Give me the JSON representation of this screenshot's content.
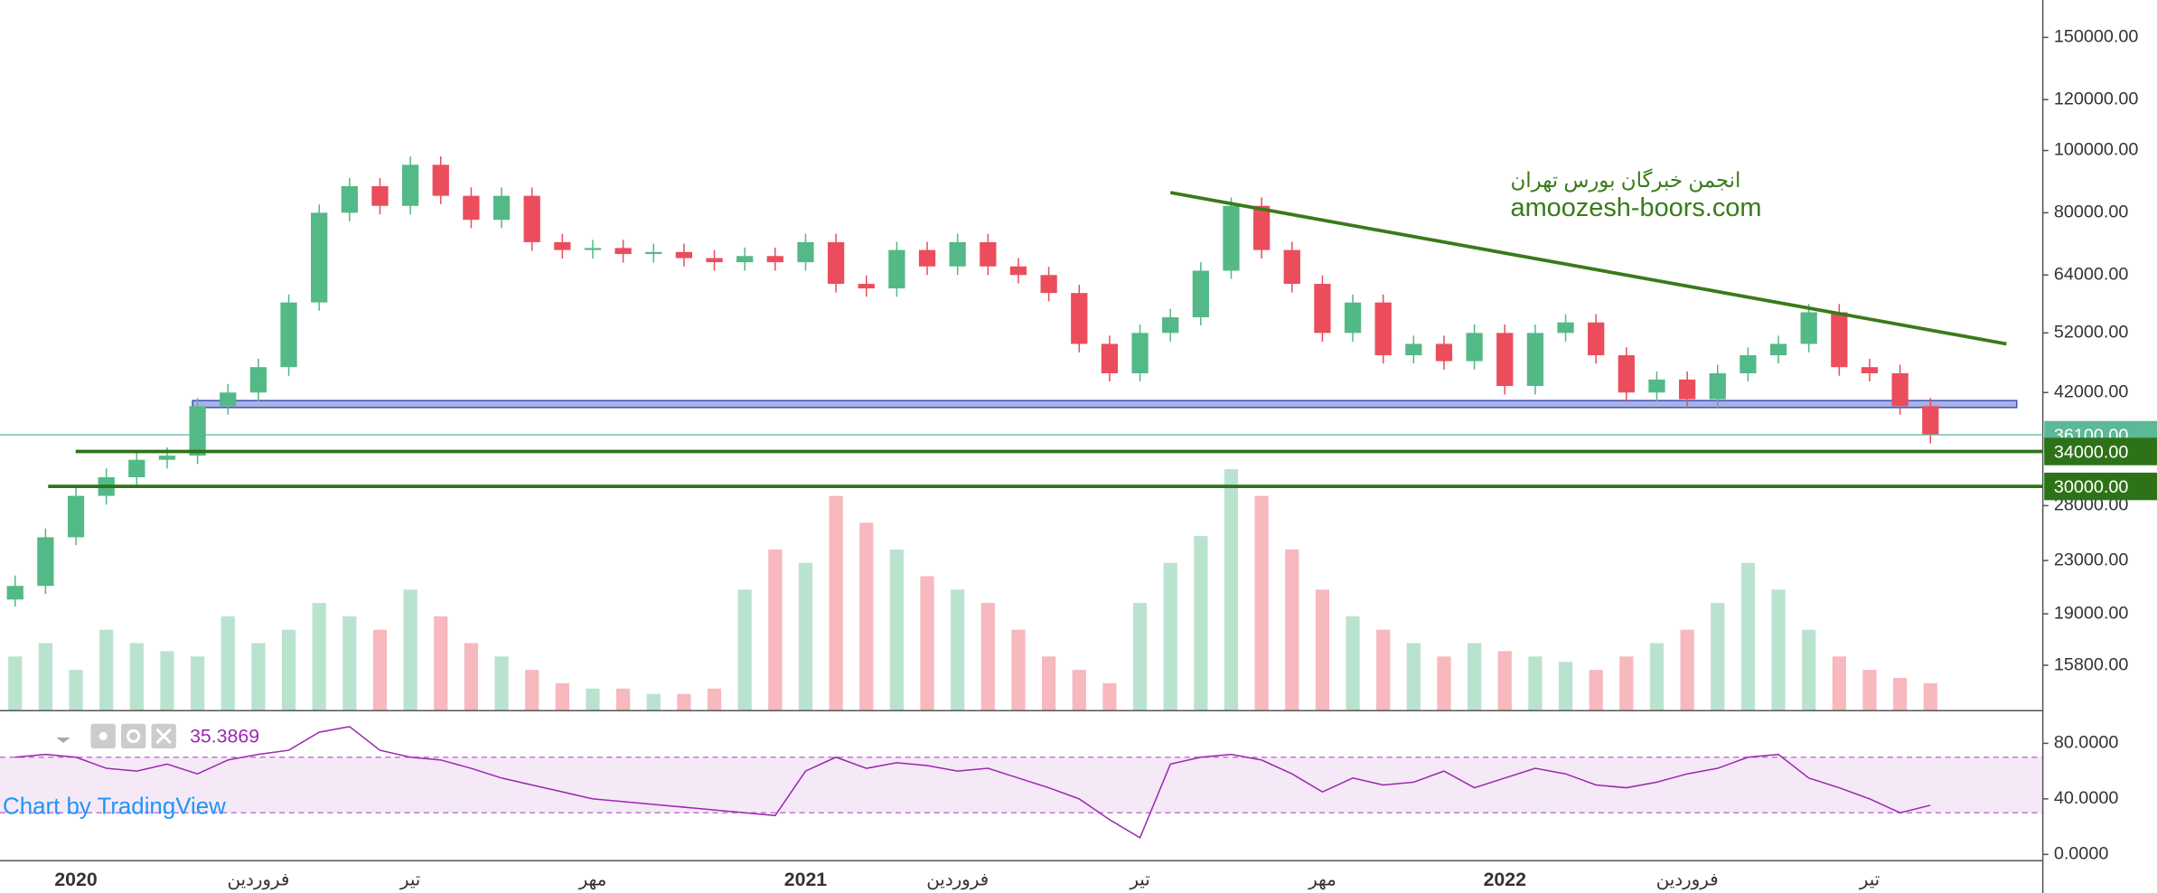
{
  "chart_data": {
    "type": "candlestick",
    "watermark_title": "انجمن خبرگان بورس تهران",
    "watermark_url": "amoozesh-boors.com",
    "credit": "Chart by TradingView",
    "categories": [
      null,
      null,
      "2020",
      null,
      null,
      null,
      null,
      null,
      "فروردین",
      null,
      null,
      null,
      null,
      "تیر",
      null,
      null,
      null,
      null,
      null,
      "مهر",
      null,
      null,
      null,
      null,
      null,
      null,
      "2021",
      null,
      null,
      null,
      null,
      "فروردین",
      null,
      null,
      null,
      null,
      null,
      "تیر",
      null,
      null,
      null,
      null,
      null,
      "مهر",
      null,
      null,
      null,
      null,
      null,
      "2022",
      null,
      null,
      null,
      null,
      null,
      "فروردین",
      null,
      null,
      null,
      null,
      null,
      "تیر",
      null,
      null
    ],
    "open": [
      20000,
      21000,
      25000,
      29000,
      31000,
      33000,
      33500,
      40000,
      42000,
      46000,
      58000,
      80000,
      88000,
      82000,
      95000,
      85000,
      78000,
      85000,
      72000,
      70000,
      70500,
      69000,
      69500,
      68000,
      67000,
      68500,
      67000,
      72000,
      62000,
      61000,
      70000,
      66000,
      72000,
      66000,
      64000,
      60000,
      50000,
      45000,
      52000,
      55000,
      65000,
      82000,
      70000,
      62000,
      52000,
      58000,
      48000,
      50000,
      47000,
      52000,
      43000,
      52000,
      54000,
      48000,
      42000,
      44000,
      41000,
      45000,
      48000,
      50000,
      56000,
      46000,
      45000,
      40000
    ],
    "high": [
      21800,
      25800,
      29900,
      32000,
      34000,
      34500,
      41200,
      43300,
      47400,
      59700,
      82400,
      90600,
      90600,
      97900,
      97900,
      87600,
      87600,
      87600,
      74200,
      72600,
      72600,
      71600,
      71600,
      70000,
      70600,
      70600,
      74200,
      74200,
      63900,
      72100,
      72100,
      74200,
      74200,
      68000,
      65900,
      61800,
      51500,
      53600,
      56700,
      67000,
      84500,
      84500,
      72100,
      63900,
      59700,
      59700,
      51500,
      51500,
      53600,
      53600,
      53600,
      55600,
      55600,
      49400,
      45300,
      45300,
      46400,
      49400,
      51500,
      57700,
      57700,
      47400,
      46400,
      41200
    ],
    "low": [
      19500,
      20400,
      24300,
      28100,
      30100,
      32000,
      32500,
      38800,
      40700,
      44600,
      56300,
      77600,
      79500,
      79500,
      82500,
      75700,
      75700,
      69800,
      67900,
      67900,
      66900,
      66900,
      66000,
      65000,
      65000,
      65000,
      65000,
      60100,
      59200,
      59200,
      64000,
      64000,
      64000,
      62100,
      58200,
      48500,
      43700,
      43700,
      50400,
      53400,
      63100,
      67900,
      60100,
      50400,
      50400,
      46600,
      46600,
      45600,
      45600,
      41700,
      41700,
      50400,
      46600,
      40700,
      40700,
      39800,
      39800,
      43700,
      46600,
      48500,
      44600,
      43700,
      38800,
      35000
    ],
    "close": [
      21000,
      25000,
      29000,
      31000,
      33000,
      33500,
      40000,
      42000,
      46000,
      58000,
      80000,
      88000,
      82000,
      95000,
      85000,
      78000,
      85000,
      72000,
      70000,
      70500,
      69000,
      69500,
      68000,
      67000,
      68500,
      67000,
      72000,
      62000,
      61000,
      70000,
      66000,
      72000,
      66000,
      64000,
      60000,
      50000,
      45000,
      52000,
      55000,
      65000,
      82000,
      70000,
      62000,
      52000,
      58000,
      48000,
      50000,
      47000,
      52000,
      43000,
      52000,
      54000,
      48000,
      42000,
      44000,
      41000,
      45000,
      48000,
      50000,
      56000,
      46000,
      45000,
      40000,
      36100
    ],
    "up_color": "#53b987",
    "down_color": "#eb4d5c",
    "log_scale": true,
    "ylim": [
      13460,
      171500
    ],
    "yticks": [
      {
        "value": 150000,
        "label": "150000.00"
      },
      {
        "value": 120000,
        "label": "120000.00"
      },
      {
        "value": 100000,
        "label": "100000.00"
      },
      {
        "value": 80000,
        "label": "80000.00"
      },
      {
        "value": 64000,
        "label": "64000.00"
      },
      {
        "value": 52000,
        "label": "52000.00"
      },
      {
        "value": 42000,
        "label": "42000.00"
      },
      {
        "value": 28000,
        "label": "28000.00"
      },
      {
        "value": 23000,
        "label": "23000.00"
      },
      {
        "value": 19000,
        "label": "19000.00"
      },
      {
        "value": 15800,
        "label": "15800.00"
      }
    ],
    "price_line": {
      "value": 36100,
      "label": "36100.00",
      "color": "#5cb897"
    },
    "levels": [
      {
        "value": 34000,
        "label": "34000.00"
      },
      {
        "value": 30000,
        "label": "30000.00"
      }
    ],
    "level_color": "#2e7218",
    "zone": [
      39800,
      40800
    ],
    "zone_color": "#6e7fd0",
    "trendline": {
      "x": [
        38,
        65.5
      ],
      "y": [
        86000,
        50000
      ],
      "color": "#3a7a1a"
    },
    "volume": {
      "values": [
        20,
        25,
        15,
        30,
        25,
        22,
        20,
        35,
        25,
        30,
        40,
        35,
        30,
        45,
        35,
        25,
        20,
        15,
        10,
        8,
        8,
        6,
        6,
        8,
        45,
        60,
        55,
        80,
        70,
        60,
        50,
        45,
        40,
        30,
        20,
        15,
        10,
        40,
        55,
        65,
        90,
        80,
        60,
        45,
        35,
        30,
        25,
        20,
        25,
        22,
        20,
        18,
        15,
        20,
        25,
        30,
        40,
        55,
        45,
        30,
        20,
        15,
        12,
        10
      ]
    },
    "rsi": {
      "values": [
        70,
        72,
        70,
        62,
        60,
        65,
        58,
        68,
        72,
        75,
        88,
        92,
        75,
        70,
        68,
        62,
        55,
        50,
        45,
        40,
        38,
        36,
        34,
        32,
        30,
        28,
        60,
        70,
        62,
        66,
        64,
        60,
        62,
        55,
        48,
        40,
        25,
        12,
        65,
        70,
        72,
        68,
        58,
        45,
        55,
        50,
        52,
        60,
        48,
        55,
        62,
        58,
        50,
        48,
        52,
        58,
        62,
        70,
        72,
        55,
        48,
        40,
        30,
        35.3869
      ],
      "color": "#9c27b0",
      "ylim": [
        -4,
        103
      ],
      "band": [
        30,
        70
      ],
      "yticks": [
        {
          "value": 80,
          "label": "80.0000"
        },
        {
          "value": 40,
          "label": "40.0000"
        },
        {
          "value": 0,
          "label": "0.0000"
        }
      ]
    }
  }
}
